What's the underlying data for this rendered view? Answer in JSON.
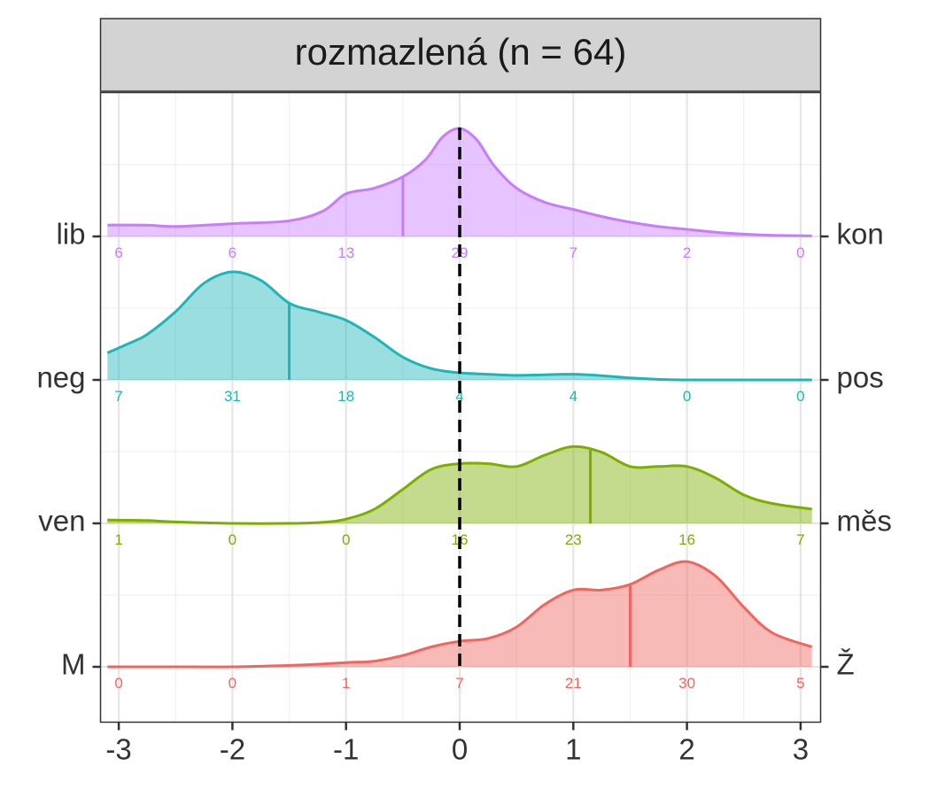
{
  "chart_data": {
    "type": "ridgeline density",
    "title": "rozmazlená (n = 64)",
    "xlabel": "",
    "ylabel": "",
    "xlim": [
      -3.1,
      3.1
    ],
    "x_ticks": [
      "-3",
      "-2",
      "-1",
      "0",
      "1",
      "2",
      "3"
    ],
    "x_tick_values": [
      -3,
      -2,
      -1,
      0,
      1,
      2,
      3
    ],
    "reference_line_x": 0,
    "grid": true,
    "count_positions": [
      -3,
      -2,
      -1,
      0,
      1,
      2,
      3
    ],
    "series": [
      {
        "left_label": "lib",
        "right_label": "kon",
        "color": "#C77CFF",
        "mean": -0.5,
        "counts": [
          6,
          6,
          13,
          29,
          7,
          2,
          0
        ],
        "density_x": [
          -3.1,
          -2.75,
          -2.5,
          -2.0,
          -1.5,
          -1.2,
          -1.0,
          -0.75,
          -0.5,
          -0.3,
          -0.15,
          0.0,
          0.15,
          0.3,
          0.5,
          0.75,
          1.0,
          1.25,
          1.5,
          1.75,
          2.0,
          2.25,
          2.5,
          2.75,
          3.1
        ],
        "density_y": [
          0.04,
          0.04,
          0.035,
          0.045,
          0.055,
          0.09,
          0.15,
          0.17,
          0.21,
          0.27,
          0.35,
          0.38,
          0.34,
          0.25,
          0.17,
          0.12,
          0.095,
          0.07,
          0.05,
          0.035,
          0.025,
          0.015,
          0.008,
          0.004,
          0.002
        ]
      },
      {
        "left_label": "neg",
        "right_label": "pos",
        "color": "#1FB5B8",
        "mean": -1.5,
        "counts": [
          7,
          31,
          18,
          4,
          4,
          0,
          0
        ],
        "density_x": [
          -3.1,
          -2.9,
          -2.75,
          -2.5,
          -2.25,
          -2.0,
          -1.75,
          -1.5,
          -1.25,
          -1.0,
          -0.75,
          -0.5,
          -0.25,
          0.0,
          0.25,
          0.5,
          0.75,
          1.0,
          1.25,
          1.5,
          1.75,
          2.0,
          2.5,
          3.1
        ],
        "density_y": [
          0.095,
          0.13,
          0.16,
          0.24,
          0.34,
          0.38,
          0.35,
          0.27,
          0.24,
          0.21,
          0.15,
          0.08,
          0.04,
          0.025,
          0.02,
          0.016,
          0.018,
          0.02,
          0.015,
          0.007,
          0.002,
          0.0,
          0.0,
          0.0
        ]
      },
      {
        "left_label": "ven",
        "right_label": "měs",
        "color": "#7CAE00",
        "mean": 1.15,
        "counts": [
          1,
          0,
          0,
          16,
          23,
          16,
          7
        ],
        "density_x": [
          -3.1,
          -2.75,
          -2.5,
          -2.0,
          -1.5,
          -1.2,
          -1.0,
          -0.75,
          -0.5,
          -0.25,
          0.0,
          0.25,
          0.5,
          0.75,
          1.0,
          1.25,
          1.5,
          1.75,
          2.0,
          2.25,
          2.5,
          2.75,
          3.1
        ],
        "density_y": [
          0.012,
          0.01,
          0.005,
          0.0,
          0.0,
          0.004,
          0.015,
          0.05,
          0.12,
          0.19,
          0.21,
          0.21,
          0.2,
          0.24,
          0.27,
          0.25,
          0.2,
          0.2,
          0.2,
          0.16,
          0.1,
          0.07,
          0.05
        ]
      },
      {
        "left_label": "M",
        "right_label": "Ž",
        "color": "#F0655E",
        "mean": 1.5,
        "counts": [
          0,
          0,
          1,
          7,
          21,
          30,
          5
        ],
        "density_x": [
          -3.1,
          -2.75,
          -2.5,
          -2.0,
          -1.5,
          -1.2,
          -1.0,
          -0.75,
          -0.5,
          -0.25,
          0.0,
          0.25,
          0.5,
          0.75,
          1.0,
          1.25,
          1.5,
          1.75,
          2.0,
          2.25,
          2.5,
          2.75,
          3.1
        ],
        "density_y": [
          0.0,
          0.0,
          0.0,
          0.0,
          0.005,
          0.01,
          0.015,
          0.02,
          0.04,
          0.07,
          0.09,
          0.1,
          0.14,
          0.22,
          0.27,
          0.27,
          0.29,
          0.34,
          0.37,
          0.32,
          0.21,
          0.12,
          0.07
        ]
      }
    ]
  }
}
